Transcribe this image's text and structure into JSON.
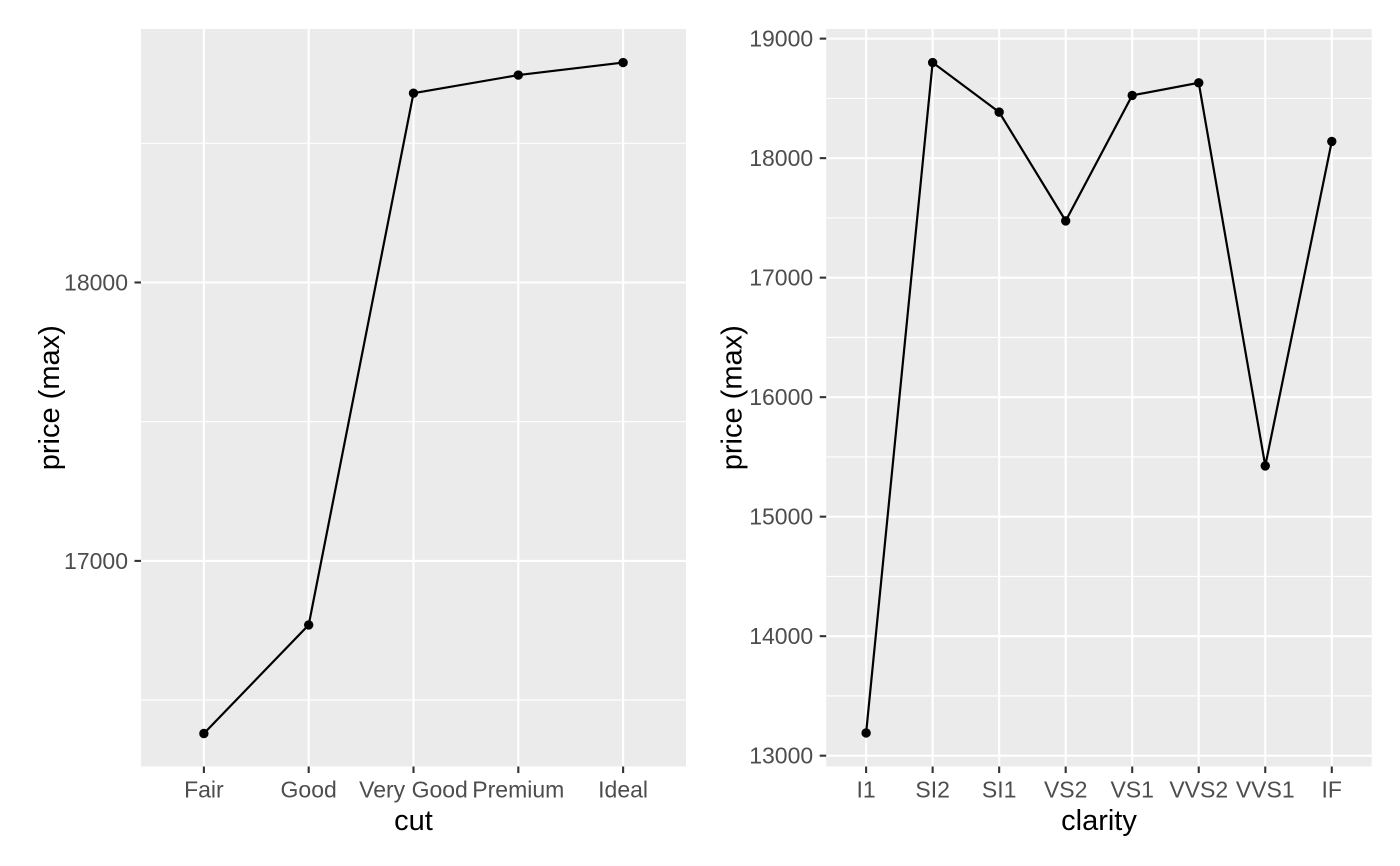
{
  "style": {
    "background": "#FFFFFF",
    "panel_background": "#EBEBEB",
    "grid_color": "#FFFFFF",
    "axis_tick_color": "#333333",
    "tick_label_color": "#4D4D4D",
    "axis_title_color": "#000000",
    "series_color": "#000000"
  },
  "chart_data": [
    {
      "type": "line",
      "title": "",
      "xlabel": "cut",
      "ylabel": "price (max)",
      "categories": [
        "Fair",
        "Good",
        "Very Good",
        "Premium",
        "Ideal"
      ],
      "values": [
        16380,
        16770,
        18680,
        18745,
        18790
      ],
      "y_ticks": [
        17000,
        18000
      ],
      "y_tick_labels": [
        "17000",
        "18000"
      ],
      "ylim": [
        16261.5,
        18910.5
      ],
      "grid": "white major+minor on gray panel",
      "legend": "none",
      "markers": "filled black points with connecting line"
    },
    {
      "type": "line",
      "title": "",
      "xlabel": "clarity",
      "ylabel": "price (max)",
      "categories": [
        "I1",
        "SI2",
        "SI1",
        "VS2",
        "VS1",
        "VVS2",
        "VVS1",
        "IF"
      ],
      "values": [
        13190,
        18800,
        18385,
        17475,
        18525,
        18630,
        15425,
        18140
      ],
      "y_ticks": [
        13000,
        14000,
        15000,
        16000,
        17000,
        18000,
        19000
      ],
      "y_tick_labels": [
        "13000",
        "14000",
        "15000",
        "16000",
        "17000",
        "18000",
        "19000"
      ],
      "ylim": [
        12909.5,
        19080.5
      ],
      "grid": "white major+minor on gray panel",
      "legend": "none",
      "markers": "filled black points with connecting line"
    }
  ]
}
